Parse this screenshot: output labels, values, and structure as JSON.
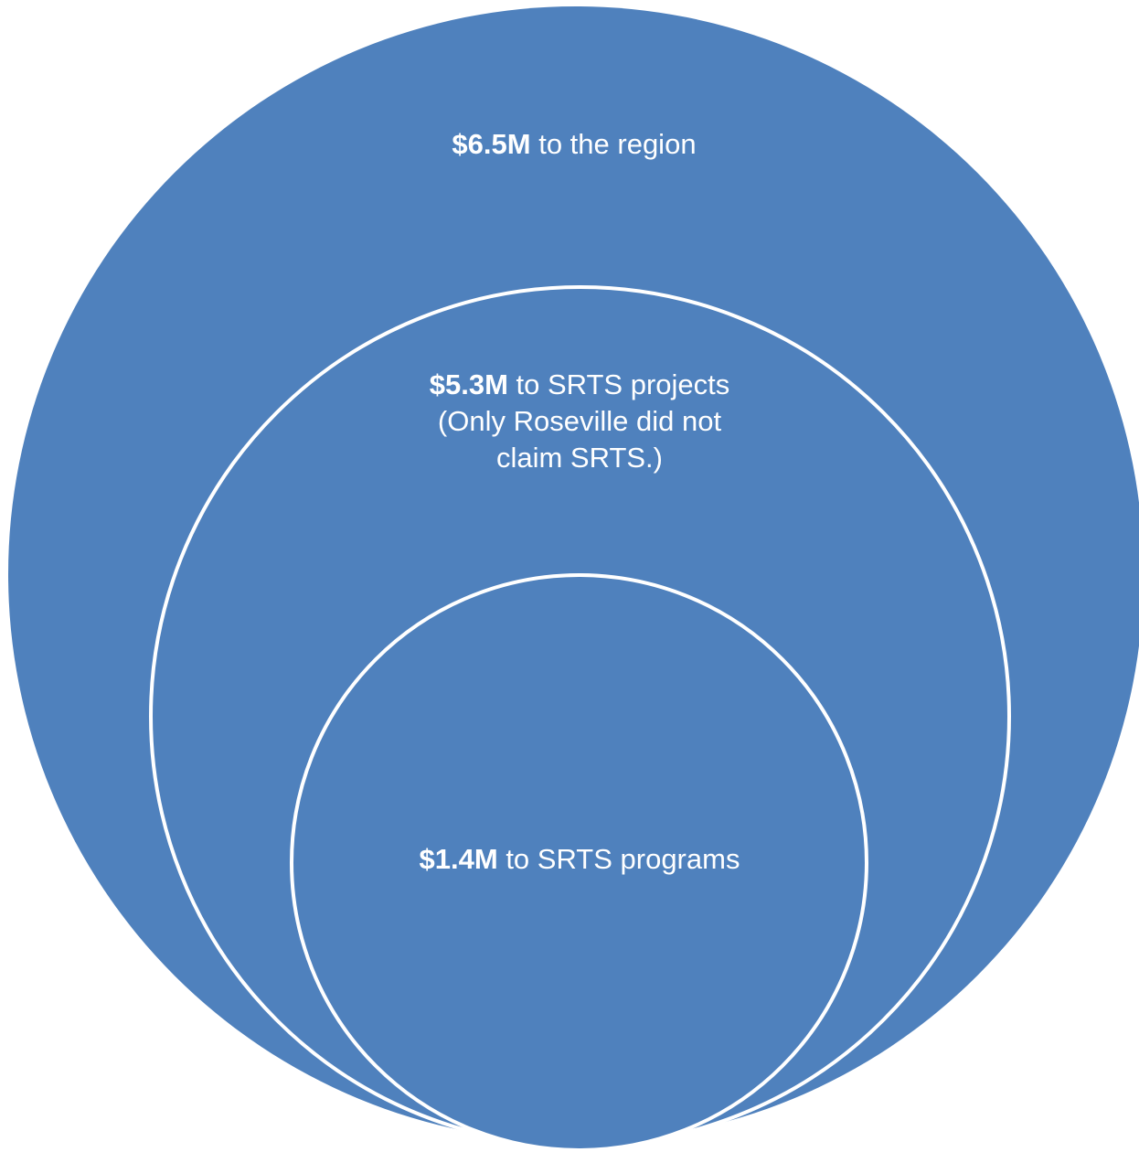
{
  "colors": {
    "fill": "#4f81bd",
    "outline": "#ffffff",
    "text": "#ffffff"
  },
  "circles": {
    "outer": {
      "amount": "$6.5M",
      "text": " to the region"
    },
    "middle": {
      "amount": "$5.3M",
      "text": " to SRTS projects",
      "note_line1": "(Only Roseville did not",
      "note_line2": "claim SRTS.)"
    },
    "inner": {
      "amount": "$1.4M",
      "text": " to SRTS programs"
    }
  }
}
